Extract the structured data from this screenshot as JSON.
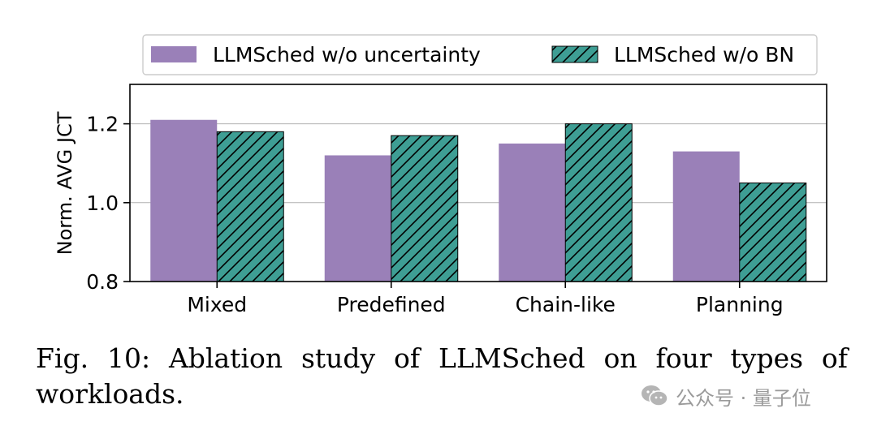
{
  "chart_data": {
    "type": "bar",
    "title": "",
    "xlabel": "",
    "ylabel": "Norm. AVG JCT",
    "categories": [
      "Mixed",
      "Predefined",
      "Chain-like",
      "Planning"
    ],
    "series": [
      {
        "name": "LLMSched w/o uncertainty",
        "values": [
          1.21,
          1.12,
          1.15,
          1.13
        ],
        "color": "#9a80b8",
        "hatch": "none"
      },
      {
        "name": "LLMSched w/o BN",
        "values": [
          1.18,
          1.17,
          1.2,
          1.05
        ],
        "color": "#3e9e94",
        "hatch": "diagonal"
      }
    ],
    "ylim": [
      0.8,
      1.3
    ],
    "yticks": [
      0.8,
      1.0,
      1.2
    ],
    "ytick_labels": [
      "0.8",
      "1.0",
      "1.2"
    ],
    "grid": "horizontal",
    "legend_position": "top"
  },
  "caption": "Fig. 10: Ablation study of LLMSched on four types of workloads.",
  "watermark": {
    "text": "公众号 · 量子位",
    "icon": "wechat-icon"
  }
}
